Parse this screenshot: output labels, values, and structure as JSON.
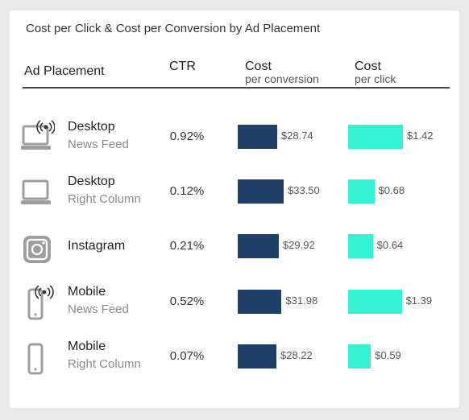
{
  "title": "Cost per Click & Cost per Conversion by Ad Placement",
  "headers": {
    "placement": "Ad Placement",
    "ctr": "CTR",
    "conv_main": "Cost",
    "conv_sub": "per conversion",
    "click_main": "Cost",
    "click_sub": "per click"
  },
  "colors": {
    "conversion_bar": "#1f4068",
    "click_bar": "#33f2d2",
    "icon": "#9e9e9e"
  },
  "chart_data": {
    "type": "bar",
    "categories": [
      "Desktop News Feed",
      "Desktop Right Column",
      "Instagram",
      "Mobile News Feed",
      "Mobile Right Column"
    ],
    "series": [
      {
        "name": "Cost per conversion",
        "values": [
          28.74,
          33.5,
          29.92,
          31.98,
          28.22
        ]
      },
      {
        "name": "Cost per click",
        "values": [
          1.42,
          0.68,
          0.64,
          1.39,
          0.59
        ]
      }
    ]
  },
  "rows": [
    {
      "icon": "desktop-broadcast-icon",
      "line1": "Desktop",
      "line2": "News Feed",
      "ctr": "0.92%",
      "conv_label": "$28.74",
      "click_label": "$1.42"
    },
    {
      "icon": "desktop-icon",
      "line1": "Desktop",
      "line2": "Right Column",
      "ctr": "0.12%",
      "conv_label": "$33.50",
      "click_label": "$0.68"
    },
    {
      "icon": "instagram-icon",
      "line1": "Instagram",
      "line2": "",
      "ctr": "0.21%",
      "conv_label": "$29.92",
      "click_label": "$0.64"
    },
    {
      "icon": "mobile-broadcast-icon",
      "line1": "Mobile",
      "line2": "News Feed",
      "ctr": "0.52%",
      "conv_label": "$31.98",
      "click_label": "$1.39"
    },
    {
      "icon": "mobile-icon",
      "line1": "Mobile",
      "line2": "Right Column",
      "ctr": "0.07%",
      "conv_label": "$28.22",
      "click_label": "$0.59"
    }
  ]
}
